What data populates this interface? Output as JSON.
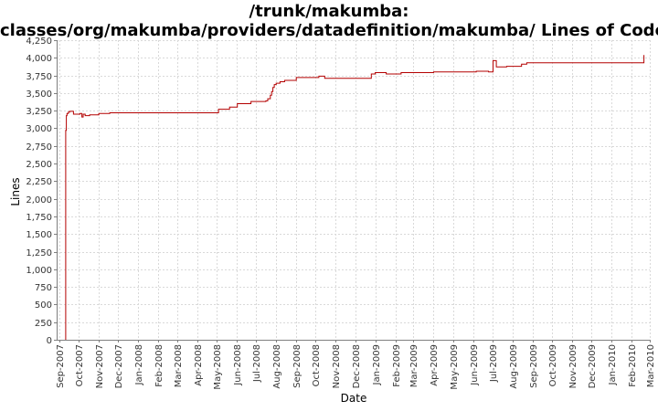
{
  "chart_data": {
    "type": "line",
    "title_lines": [
      "/trunk/makumba:",
      "classes/org/makumba/providers/datadefinition/makumba/ Lines of Code"
    ],
    "xlabel": "Date",
    "ylabel": "Lines",
    "x_ticks": [
      "Sep-2007",
      "Oct-2007",
      "Nov-2007",
      "Dec-2007",
      "Jan-2008",
      "Feb-2008",
      "Mar-2008",
      "Apr-2008",
      "May-2008",
      "Jun-2008",
      "Jul-2008",
      "Aug-2008",
      "Sep-2008",
      "Oct-2008",
      "Nov-2008",
      "Dec-2008",
      "Jan-2009",
      "Feb-2009",
      "Mar-2009",
      "Apr-2009",
      "May-2009",
      "Jun-2009",
      "Jul-2009",
      "Aug-2009",
      "Sep-2009",
      "Oct-2009",
      "Nov-2009",
      "Dec-2009",
      "Jan-2010",
      "Feb-2010",
      "Mar-2010"
    ],
    "y_ticks": [
      0,
      250,
      500,
      750,
      1000,
      1250,
      1500,
      1750,
      2000,
      2250,
      2500,
      2750,
      3000,
      3250,
      3500,
      3750,
      4000,
      4250
    ],
    "y_tick_labels": [
      "0",
      "250",
      "500",
      "750",
      "1,000",
      "1,250",
      "1,500",
      "1,750",
      "2,000",
      "2,250",
      "2,500",
      "2,750",
      "3,000",
      "3,250",
      "3,500",
      "3,750",
      "4,000",
      "4,250"
    ],
    "xlim": [
      "2007-08-28",
      "2010-03-01"
    ],
    "ylim": [
      0,
      4250
    ],
    "grid": true,
    "step": true,
    "series": [
      {
        "color": "#b30000",
        "points": [
          [
            "2007-09-11",
            0
          ],
          [
            "2007-09-11",
            2970
          ],
          [
            "2007-09-12",
            2970
          ],
          [
            "2007-09-12",
            3180
          ],
          [
            "2007-09-13",
            3210
          ],
          [
            "2007-09-15",
            3230
          ],
          [
            "2007-09-17",
            3240
          ],
          [
            "2007-09-23",
            3200
          ],
          [
            "2007-10-03",
            3210
          ],
          [
            "2007-10-06",
            3160
          ],
          [
            "2007-10-08",
            3200
          ],
          [
            "2007-10-11",
            3180
          ],
          [
            "2007-10-18",
            3190
          ],
          [
            "2007-11-01",
            3210
          ],
          [
            "2007-11-18",
            3220
          ],
          [
            "2008-05-04",
            3270
          ],
          [
            "2008-05-21",
            3300
          ],
          [
            "2008-06-02",
            3350
          ],
          [
            "2008-06-23",
            3380
          ],
          [
            "2008-07-16",
            3390
          ],
          [
            "2008-07-19",
            3420
          ],
          [
            "2008-07-23",
            3470
          ],
          [
            "2008-07-25",
            3520
          ],
          [
            "2008-07-27",
            3580
          ],
          [
            "2008-07-29",
            3620
          ],
          [
            "2008-08-01",
            3640
          ],
          [
            "2008-08-07",
            3660
          ],
          [
            "2008-08-14",
            3680
          ],
          [
            "2008-09-01",
            3720
          ],
          [
            "2008-10-06",
            3740
          ],
          [
            "2008-10-15",
            3710
          ],
          [
            "2008-12-26",
            3770
          ],
          [
            "2009-01-01",
            3790
          ],
          [
            "2009-01-18",
            3770
          ],
          [
            "2009-02-10",
            3790
          ],
          [
            "2009-04-01",
            3800
          ],
          [
            "2009-06-06",
            3810
          ],
          [
            "2009-06-25",
            3800
          ],
          [
            "2009-07-02",
            3960
          ],
          [
            "2009-07-07",
            3870
          ],
          [
            "2009-07-23",
            3880
          ],
          [
            "2009-08-15",
            3910
          ],
          [
            "2009-08-23",
            3930
          ],
          [
            "2010-02-20",
            3930
          ],
          [
            "2010-02-20",
            4040
          ],
          [
            "2010-02-20",
            3950
          ]
        ]
      }
    ]
  }
}
